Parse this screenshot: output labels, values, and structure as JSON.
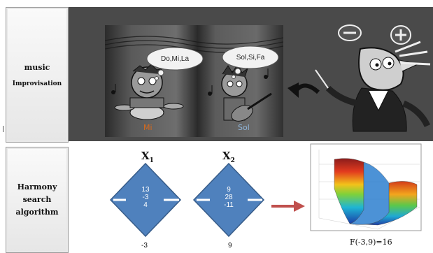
{
  "row_top": {
    "label_line1": "music",
    "label_line2": "Improvisation",
    "bubble_left": "Do,Mi,La",
    "bubble_right": "Sol,Si,Fa",
    "caption_left": "Mi",
    "caption_right": "Sol",
    "icons": [
      "minus-sign-icon",
      "plus-sign-icon",
      "conductor-character",
      "drummer-character",
      "guitarist-character",
      "music-note-icon"
    ]
  },
  "row_bottom": {
    "label_line1": "Harmony",
    "label_line2": "search",
    "label_line3": "algorithm",
    "x1_var": "X",
    "x1_sub": "1",
    "x2_var": "X",
    "x2_sub": "2",
    "diamond1_values": [
      "13",
      "-3",
      "4"
    ],
    "diamond2_values": [
      "9",
      "28",
      "-11"
    ],
    "below1": "-3",
    "below2": "9",
    "result": "F(-3,9)=16"
  },
  "colors": {
    "panel_bg": "#4a4a4a",
    "diamond_fill": "#4f81bd",
    "diamond_stroke": "#385d8a",
    "arrow": "#c0504d",
    "caption_left": "#d86a1c",
    "caption_right": "#8fb3d6"
  }
}
